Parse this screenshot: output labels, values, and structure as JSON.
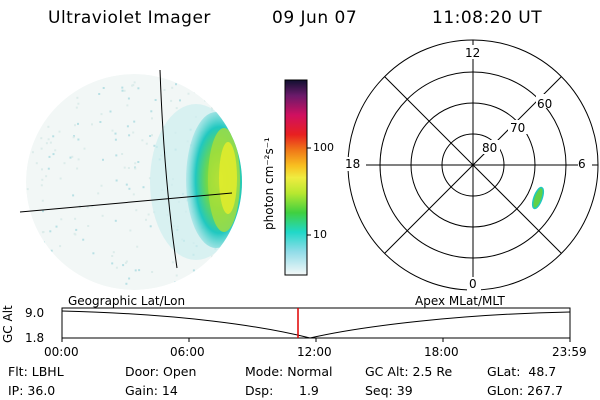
{
  "header": {
    "instrument": "Ultraviolet Imager",
    "date": "09 Jun 07",
    "time": "11:08:20 UT"
  },
  "colorbar": {
    "unit": "photon cm⁻²s⁻¹",
    "ticks": [
      "100",
      "10"
    ]
  },
  "polar_plot": {
    "mlt_labels": [
      "12",
      "18",
      "6",
      "0"
    ],
    "lat_labels": [
      "60",
      "70",
      "80"
    ]
  },
  "timeline": {
    "left_title": "Geographic Lat/Lon",
    "right_title": "Apex MLat/MLT",
    "y_axis_label": "GC Alt",
    "y_ticks": [
      "9.0",
      "1.8"
    ],
    "x_ticks": [
      "00:00",
      "06:00",
      "12:00",
      "18:00",
      "23:59"
    ],
    "current_time_fraction": 0.4645
  },
  "footer": {
    "filter": "Flt: LBHL",
    "ip": "IP: 36.0",
    "door": "Door: Open",
    "gain": "Gain: 14",
    "mode": "Mode: Normal",
    "dsp_label": "Dsp:",
    "dsp_value": "1.9",
    "gc_alt": "GC Alt: 2.5 Re",
    "seq": "Seq: 39",
    "glat": "GLat:  48.7",
    "glon": "GLon: 267.7"
  }
}
